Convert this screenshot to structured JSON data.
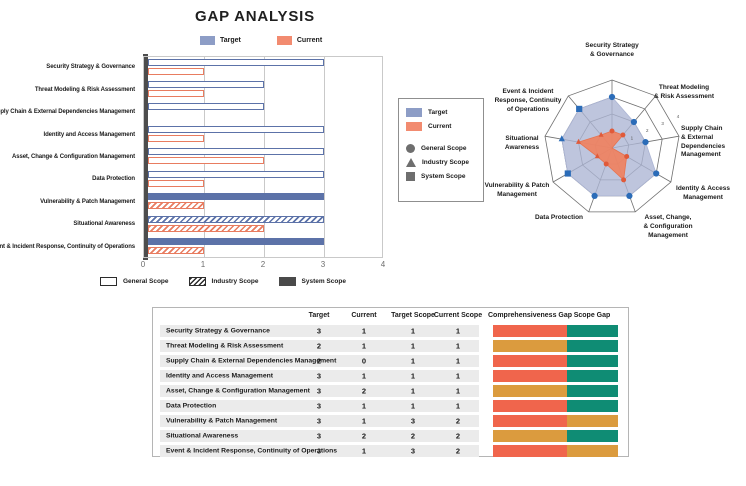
{
  "title": "GAP ANALYSIS",
  "bar_legend": {
    "target_label": "Target",
    "current_label": "Current"
  },
  "scope_legend": {
    "general": "General Scope",
    "industry": "Industry Scope",
    "system": "System Scope"
  },
  "radar_legend": {
    "target_label": "Target",
    "current_label": "Current",
    "general": "General Scope",
    "industry": "Industry Scope",
    "system": "System Scope"
  },
  "colors": {
    "target_fill": "#8D9DC6",
    "target_stroke": "#5C72A8",
    "current_fill": "#F28B70",
    "current_stroke": "#E87C60",
    "radar_target_fill": "#ACB5D4",
    "radar_current_fill": "#EF8160",
    "radar_current_stroke": "#E8734F",
    "radar_target_marker": "#2B6CB8",
    "radar_current_marker": "#E05A3A",
    "gap_red": "#F0654C",
    "gap_amber": "#DB9B3E",
    "gap_teal": "#0F8C74",
    "row_bg": "#EBEBEB",
    "grid": "#C9C9C9",
    "axis": "#4D4D4D"
  },
  "chart_data": [
    {
      "type": "bar",
      "orientation": "horizontal",
      "title": "GAP ANALYSIS",
      "categories": [
        "Security Strategy & Governance",
        "Threat Modeling & Risk Assessment",
        "Supply Chain & External Dependencies Management",
        "Identity and Access Management",
        "Asset, Change & Configuration Management",
        "Data Protection",
        "Vulnerability & Patch Management",
        "Situational Awareness",
        "Event & Incident Response, Continuity of Operations"
      ],
      "series": [
        {
          "name": "Target",
          "values": [
            3,
            2,
            2,
            3,
            3,
            3,
            3,
            3,
            3
          ],
          "scopes": [
            1,
            1,
            1,
            1,
            1,
            1,
            3,
            2,
            3
          ]
        },
        {
          "name": "Current",
          "values": [
            1,
            1,
            0,
            1,
            2,
            1,
            1,
            2,
            1
          ],
          "scopes": [
            1,
            1,
            1,
            1,
            1,
            1,
            2,
            2,
            2
          ]
        }
      ],
      "xlim": [
        0,
        4
      ],
      "xticks": [
        0,
        1,
        2,
        3,
        4
      ],
      "scope_styles": {
        "1": "General Scope (outline)",
        "2": "Industry Scope (hatched)",
        "3": "System Scope (solid)"
      },
      "legend_position": "top"
    },
    {
      "type": "radar",
      "categories": [
        [
          "Security Strategy",
          "& Governance"
        ],
        [
          "Threat Modeling",
          "& Risk Assessment"
        ],
        [
          "Supply Chain",
          "& External",
          "Dependencies",
          "Management"
        ],
        [
          "Identity & Access",
          "Management"
        ],
        [
          "Asset, Change,",
          "& Configuration",
          "Management"
        ],
        [
          "Data Protection"
        ],
        [
          "Vulnerability & Patch",
          "Management"
        ],
        [
          "Situational",
          "Awareness"
        ],
        [
          "Event & Incident",
          "Response, Continuity",
          "of Operations"
        ]
      ],
      "scale_labels": [
        1,
        2,
        3,
        4
      ],
      "rmax": 4,
      "series": [
        {
          "name": "Target",
          "values": [
            3,
            2,
            2,
            3,
            3,
            3,
            3,
            3,
            3
          ],
          "scopes": [
            1,
            1,
            1,
            1,
            1,
            1,
            3,
            2,
            3
          ]
        },
        {
          "name": "Current",
          "values": [
            1,
            1,
            0,
            1,
            2,
            1,
            1,
            2,
            1
          ],
          "scopes": [
            1,
            1,
            1,
            1,
            1,
            1,
            2,
            2,
            2
          ]
        }
      ],
      "marker_shapes": {
        "1": "circle (General Scope)",
        "2": "triangle (Industry Scope)",
        "3": "square (System Scope)"
      },
      "legend_position": "left"
    }
  ],
  "table": {
    "headers": [
      "Target",
      "Current",
      "Target Scope",
      "Current Scope",
      "Comprehensiveness Gap",
      "Scope Gap"
    ],
    "rows": [
      {
        "label": "Security Strategy & Governance",
        "target": 3,
        "current": 1,
        "target_scope": 1,
        "current_scope": 1,
        "comp_gap": "red",
        "scope_gap": "teal"
      },
      {
        "label": "Threat Modeling & Risk Assessment",
        "target": 2,
        "current": 1,
        "target_scope": 1,
        "current_scope": 1,
        "comp_gap": "amber",
        "scope_gap": "teal"
      },
      {
        "label": "Supply Chain & External Dependencies Management",
        "target": 2,
        "current": 0,
        "target_scope": 1,
        "current_scope": 1,
        "comp_gap": "red",
        "scope_gap": "teal"
      },
      {
        "label": "Identity and Access Management",
        "target": 3,
        "current": 1,
        "target_scope": 1,
        "current_scope": 1,
        "comp_gap": "red",
        "scope_gap": "teal"
      },
      {
        "label": "Asset, Change & Configuration Management",
        "target": 3,
        "current": 2,
        "target_scope": 1,
        "current_scope": 1,
        "comp_gap": "amber",
        "scope_gap": "teal"
      },
      {
        "label": "Data Protection",
        "target": 3,
        "current": 1,
        "target_scope": 1,
        "current_scope": 1,
        "comp_gap": "red",
        "scope_gap": "teal"
      },
      {
        "label": "Vulnerability & Patch Management",
        "target": 3,
        "current": 1,
        "target_scope": 3,
        "current_scope": 2,
        "comp_gap": "red",
        "scope_gap": "amber"
      },
      {
        "label": "Situational Awareness",
        "target": 3,
        "current": 2,
        "target_scope": 2,
        "current_scope": 2,
        "comp_gap": "amber",
        "scope_gap": "teal"
      },
      {
        "label": "Event & Incident Response, Continuity of Operations",
        "target": 3,
        "current": 1,
        "target_scope": 3,
        "current_scope": 2,
        "comp_gap": "red",
        "scope_gap": "amber"
      }
    ]
  }
}
